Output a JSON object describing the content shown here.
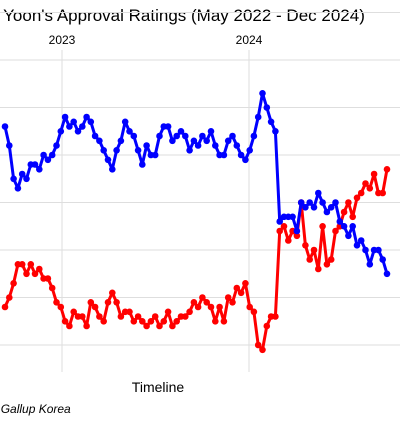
{
  "chart_data": {
    "type": "line",
    "title": "Yoon's Approval Ratings (May 2022 - Dec 2024)",
    "xlabel": "Timeline",
    "ylabel": "",
    "caption": "Source: Gallup Korea",
    "x_ticks": [
      "2023",
      "2024"
    ],
    "x_range": [
      "2022-05",
      "2024-12"
    ],
    "grid": true,
    "legend": "none",
    "series": [
      {
        "color": "#ff0000",
        "values": [
          28,
          30,
          33,
          37,
          37,
          35,
          37,
          35,
          36,
          34,
          34,
          32,
          29,
          28,
          25,
          24,
          27,
          26,
          26,
          24,
          29,
          28,
          26,
          25,
          29,
          31,
          29,
          26,
          27,
          27,
          25,
          26,
          25,
          24,
          25,
          26,
          24,
          25,
          27,
          24,
          25,
          26,
          26,
          27,
          29,
          28,
          30,
          29,
          28,
          25,
          28,
          25,
          30,
          29,
          32,
          31,
          33,
          28,
          27,
          20,
          19,
          24,
          26,
          26,
          44,
          45,
          42,
          44,
          43,
          50,
          41,
          38,
          40,
          36,
          45,
          37,
          38,
          44,
          45,
          48,
          50,
          47,
          51,
          52,
          54,
          53,
          56,
          52,
          52,
          57
        ]
      },
      {
        "color": "#0000ff",
        "values": [
          66,
          62,
          55,
          53,
          56,
          55,
          58,
          58,
          57,
          60,
          59,
          60,
          62,
          65,
          68,
          66,
          67,
          65,
          66,
          68,
          67,
          64,
          63,
          61,
          59,
          57,
          61,
          63,
          67,
          65,
          64,
          61,
          58,
          62,
          60,
          60,
          64,
          66,
          66,
          63,
          64,
          65,
          64,
          61,
          63,
          62,
          64,
          63,
          65,
          62,
          60,
          60,
          63,
          64,
          62,
          60,
          59,
          61,
          64,
          68,
          73,
          70,
          67,
          65,
          46,
          47,
          47,
          47,
          44,
          50,
          49,
          50,
          49,
          52,
          50,
          48,
          49,
          50,
          46,
          45,
          43,
          45,
          41,
          42,
          40,
          37,
          40,
          40,
          38,
          35
        ]
      }
    ]
  }
}
